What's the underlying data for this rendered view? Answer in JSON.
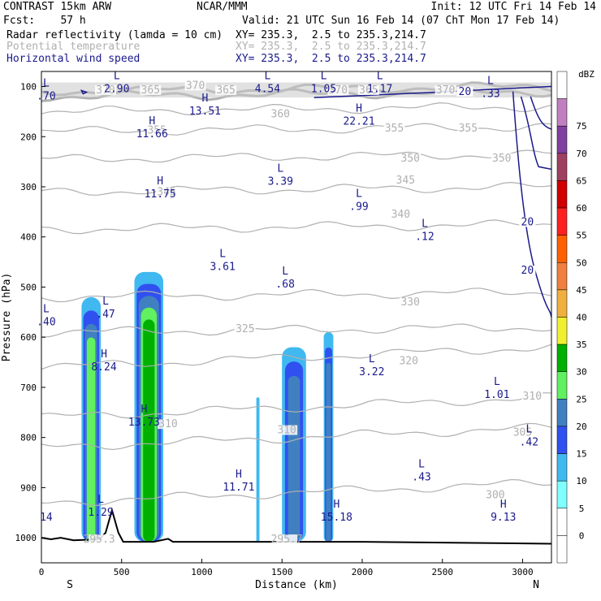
{
  "header": {
    "model": "CONTRAST 15km ARW",
    "center": "NCAR/MMM",
    "init": "Init: 12 UTC Fri 14 Feb 14",
    "fcst_label": "Fcst:",
    "fcst_value": "57 h",
    "valid": "Valid: 21 UTC Sun 16 Feb 14 (07 ChT Mon 17 Feb 14)"
  },
  "fields": [
    {
      "name": "Radar reflectivity (lamda = 10 cm)",
      "xy": "XY= 235.3,  2.5 to 235.3,214.7",
      "color": "#000000"
    },
    {
      "name": "Potential temperature",
      "xy": "XY= 235.3,  2.5 to 235.3,214.7",
      "color": "#b0b0b0"
    },
    {
      "name": "Horizontal wind speed",
      "xy": "XY= 235.3,  2.5 to 235.3,214.7",
      "color": "#1a1a8c"
    }
  ],
  "chart_data": {
    "type": "contour-cross-section",
    "xlabel": "Distance (km)",
    "ylabel": "Pressure (hPa)",
    "xlim": [
      0,
      3180
    ],
    "ylim": [
      1050,
      70
    ],
    "x_ticks": [
      0,
      500,
      1000,
      1500,
      2000,
      2500,
      3000
    ],
    "y_ticks": [
      100,
      200,
      300,
      400,
      500,
      600,
      700,
      800,
      900,
      1000
    ],
    "end_labels": {
      "left": "S",
      "right": "N"
    },
    "colorbar": {
      "unit": "dBZ",
      "levels": [
        0,
        5,
        10,
        15,
        20,
        25,
        30,
        35,
        40,
        45,
        50,
        55,
        60,
        65,
        70,
        75
      ],
      "colors": [
        "#ffffff",
        "#ffffff",
        "#80ffff",
        "#40b8f0",
        "#3050f0",
        "#4080c0",
        "#60f060",
        "#00b000",
        "#f0f030",
        "#f0b040",
        "#f08040",
        "#ff6000",
        "#ff2020",
        "#d00000",
        "#a04060",
        "#8040a0",
        "#c080c0",
        "#ffffff"
      ]
    },
    "theta_contours": [
      {
        "label": "370",
        "p": 110
      },
      {
        "label": "365",
        "p": 120
      },
      {
        "label": "360",
        "p": 150
      },
      {
        "label": "355",
        "p": 190
      },
      {
        "label": "350",
        "p": 245
      },
      {
        "label": "345",
        "p": 310
      },
      {
        "label": "340",
        "p": 385
      },
      {
        "label": "330",
        "p": 520
      },
      {
        "label": "325",
        "p": 590
      },
      {
        "label": "320",
        "p": 660
      },
      {
        "label": "310",
        "p": 760
      },
      {
        "label": "305",
        "p": 820
      },
      {
        "label": "300",
        "p": 930
      }
    ],
    "theta_labels": [
      {
        "text": "370",
        "x": 400,
        "p": 112
      },
      {
        "text": "365",
        "x": 680,
        "p": 112
      },
      {
        "text": "365",
        "x": 1150,
        "p": 112
      },
      {
        "text": "370",
        "x": 1850,
        "p": 112
      },
      {
        "text": "365",
        "x": 2040,
        "p": 112
      },
      {
        "text": "370",
        "x": 2520,
        "p": 112
      },
      {
        "text": "370",
        "x": 960,
        "p": 103
      },
      {
        "text": "360",
        "x": 1490,
        "p": 160
      },
      {
        "text": "355",
        "x": 720,
        "p": 192
      },
      {
        "text": "355",
        "x": 2200,
        "p": 188
      },
      {
        "text": "355",
        "x": 2660,
        "p": 188
      },
      {
        "text": "350",
        "x": 2300,
        "p": 248
      },
      {
        "text": "350",
        "x": 2870,
        "p": 248
      },
      {
        "text": "345",
        "x": 780,
        "p": 315
      },
      {
        "text": "345",
        "x": 2270,
        "p": 292
      },
      {
        "text": "340",
        "x": 2240,
        "p": 360
      },
      {
        "text": "330",
        "x": 2300,
        "p": 535
      },
      {
        "text": "325",
        "x": 1270,
        "p": 588
      },
      {
        "text": "320",
        "x": 2290,
        "p": 652
      },
      {
        "text": "310",
        "x": 3060,
        "p": 723
      },
      {
        "text": "310",
        "x": 790,
        "p": 778
      },
      {
        "text": "310",
        "x": 1530,
        "p": 790
      },
      {
        "text": "305",
        "x": 3000,
        "p": 795
      },
      {
        "text": "300",
        "x": 2830,
        "p": 920
      },
      {
        "text": "295.3",
        "x": 360,
        "p": 1008
      },
      {
        "text": "295.7",
        "x": 1530,
        "p": 1008
      }
    ],
    "wind_contours": [
      {
        "label": "20"
      }
    ],
    "wind_labels": [
      {
        "text": "20",
        "x": 2640,
        "p": 115
      },
      {
        "text": "20",
        "x": 3030,
        "p": 375
      },
      {
        "text": "20",
        "x": 3030,
        "p": 472
      }
    ],
    "wind_extrema": [
      {
        "type": "L",
        "value": ".70",
        "x": 30,
        "p": 100
      },
      {
        "type": "L",
        "value": "2.90",
        "x": 470,
        "p": 85
      },
      {
        "type": "H",
        "value": "13.51",
        "x": 1020,
        "p": 130
      },
      {
        "type": "L",
        "value": "4.54",
        "x": 1410,
        "p": 85
      },
      {
        "type": "L",
        "value": "1.05",
        "x": 1760,
        "p": 85
      },
      {
        "type": "L",
        "value": "1.17",
        "x": 2110,
        "p": 85
      },
      {
        "type": "L",
        "value": ".33",
        "x": 2800,
        "p": 95
      },
      {
        "type": "H",
        "value": "22.21",
        "x": 1980,
        "p": 150
      },
      {
        "type": "H",
        "value": "11.66",
        "x": 690,
        "p": 175
      },
      {
        "type": "L",
        "value": "3.39",
        "x": 1490,
        "p": 270
      },
      {
        "type": "H",
        "value": "11.75",
        "x": 740,
        "p": 295
      },
      {
        "type": "L",
        "value": ".99",
        "x": 1980,
        "p": 320
      },
      {
        "type": "L",
        "value": ".12",
        "x": 2390,
        "p": 380
      },
      {
        "type": "L",
        "value": "3.61",
        "x": 1130,
        "p": 440
      },
      {
        "type": "L",
        "value": ".68",
        "x": 1520,
        "p": 475
      },
      {
        "type": "L",
        "value": ".40",
        "x": 30,
        "p": 550
      },
      {
        "type": "L",
        "value": ".47",
        "x": 400,
        "p": 535
      },
      {
        "type": "H",
        "value": "8.24",
        "x": 390,
        "p": 640
      },
      {
        "type": "L",
        "value": "3.22",
        "x": 2060,
        "p": 650
      },
      {
        "type": "L",
        "value": "1.01",
        "x": 2840,
        "p": 695
      },
      {
        "type": "H",
        "value": "13.73",
        "x": 640,
        "p": 750
      },
      {
        "type": "L",
        "value": ".42",
        "x": 3040,
        "p": 790
      },
      {
        "type": "L",
        "value": ".43",
        "x": 2370,
        "p": 860
      },
      {
        "type": "H",
        "value": "11.71",
        "x": 1230,
        "p": 880
      },
      {
        "type": "",
        "value": "14",
        "x": 30,
        "p": 940
      },
      {
        "type": "L",
        "value": "1.29",
        "x": 370,
        "p": 930
      },
      {
        "type": "H",
        "value": "15.18",
        "x": 1840,
        "p": 940
      },
      {
        "type": "H",
        "value": "9.13",
        "x": 2880,
        "p": 940
      }
    ],
    "reflectivity_cells": [
      {
        "x0": 250,
        "x1": 370,
        "ptop": 520,
        "max_dbz": 25
      },
      {
        "x0": 580,
        "x1": 760,
        "ptop": 470,
        "max_dbz": 30
      },
      {
        "x0": 1340,
        "x1": 1360,
        "ptop": 720,
        "max_dbz": 10
      },
      {
        "x0": 1500,
        "x1": 1650,
        "ptop": 620,
        "max_dbz": 20
      },
      {
        "x0": 1760,
        "x1": 1820,
        "ptop": 590,
        "max_dbz": 20
      }
    ],
    "terrain_peak": {
      "x": 440,
      "p": 945
    }
  }
}
